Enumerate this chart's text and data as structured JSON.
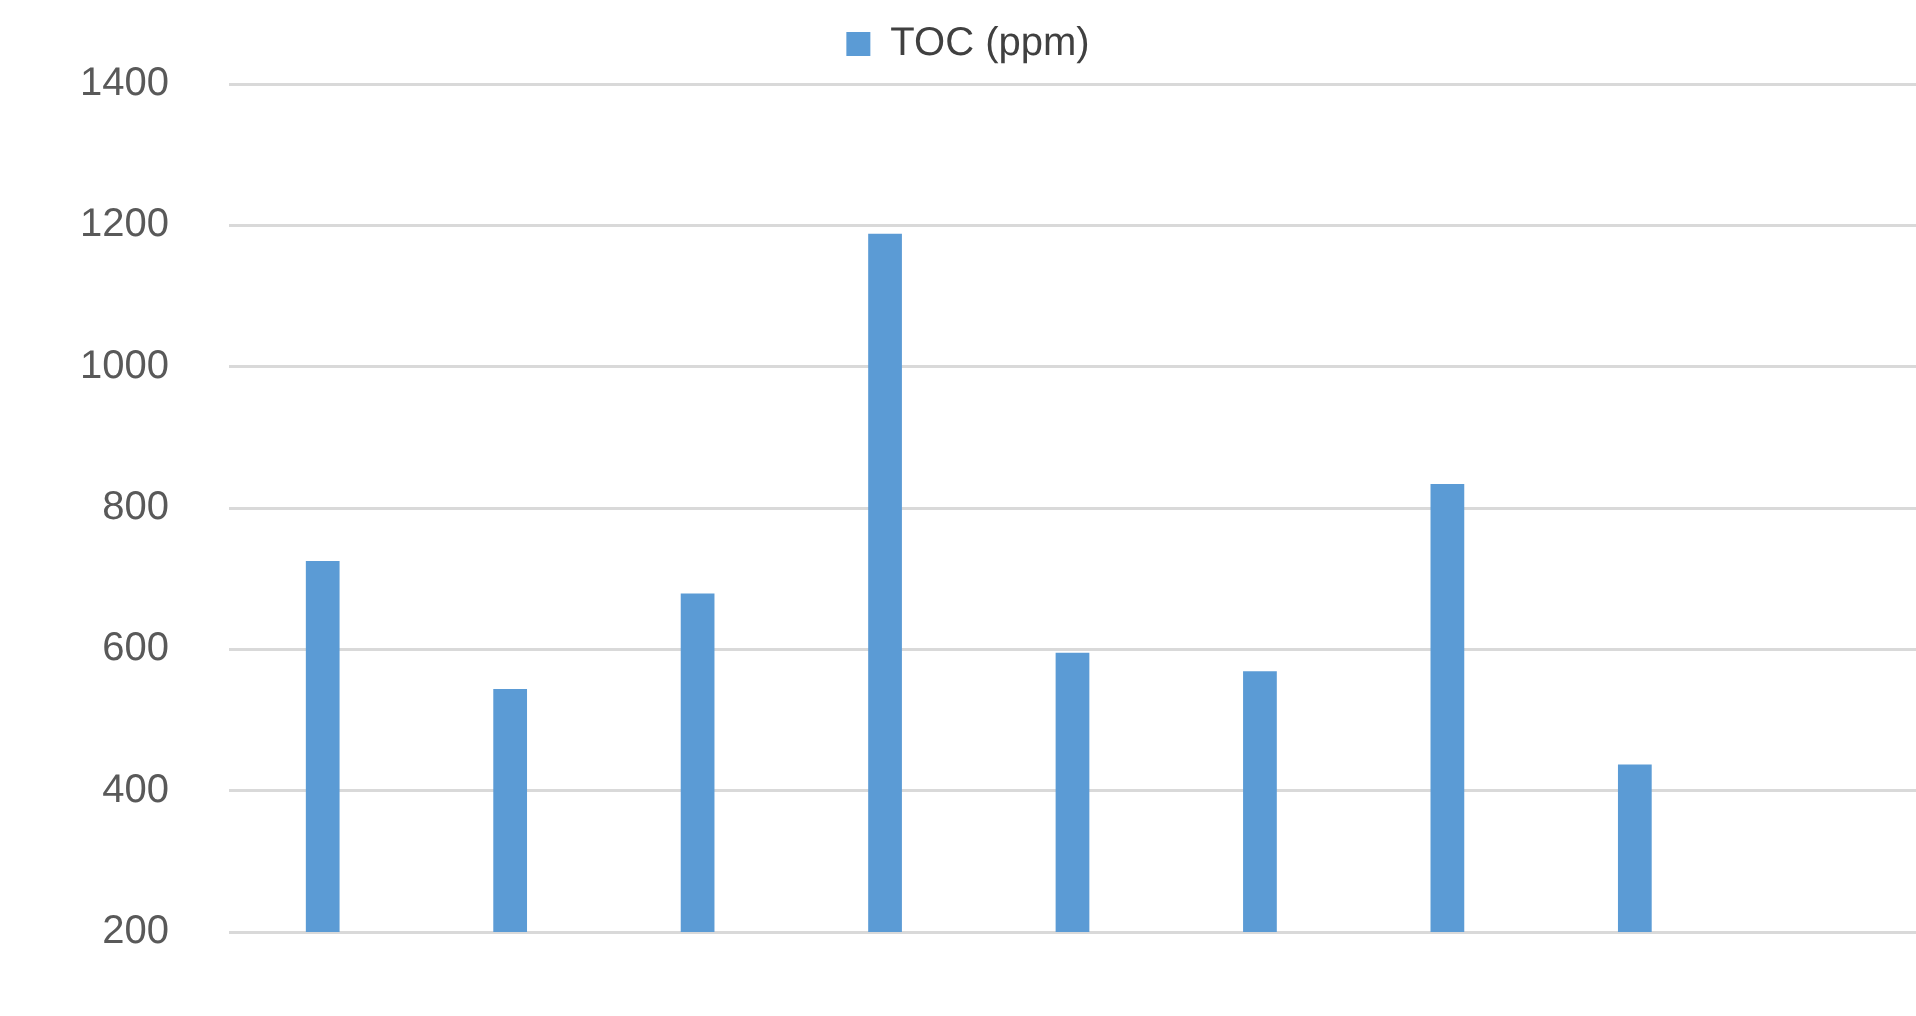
{
  "chart_data": {
    "type": "bar",
    "categories": [
      null,
      null,
      null,
      null,
      null,
      null,
      null,
      null,
      null
    ],
    "series": [
      {
        "name": "TOC (ppm)",
        "color": "#5b9bd5",
        "values": [
          725,
          544,
          679,
          1188,
          595,
          569,
          834,
          437,
          null
        ]
      }
    ],
    "ylim": [
      200,
      1400
    ],
    "yticks": [
      200,
      400,
      600,
      800,
      1000,
      1200,
      1400
    ],
    "grid": "y",
    "legend": "top",
    "tick_labels": "y"
  }
}
